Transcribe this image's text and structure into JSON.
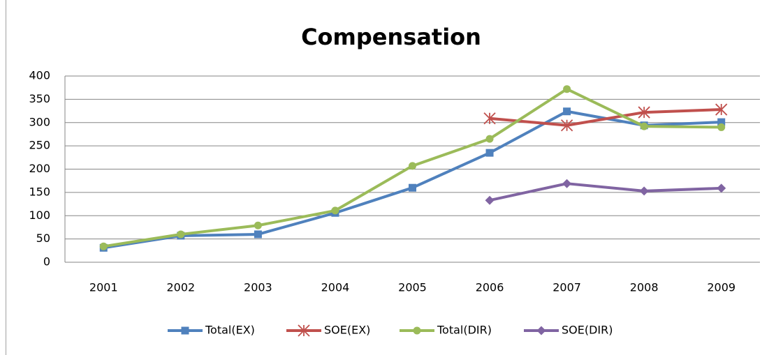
{
  "chart_data": {
    "type": "line",
    "title": "Compensation",
    "categories": [
      "2001",
      "2002",
      "2003",
      "2004",
      "2005",
      "2006",
      "2007",
      "2008",
      "2009"
    ],
    "series": [
      {
        "name": "Total(EX)",
        "color": "#4f81bd",
        "marker": "square",
        "values": [
          31,
          57,
          60,
          106,
          160,
          235,
          324,
          294,
          301
        ]
      },
      {
        "name": "SOE(EX)",
        "color": "#c0504d",
        "marker": "star",
        "values": [
          null,
          null,
          null,
          null,
          null,
          309,
          294,
          322,
          328
        ]
      },
      {
        "name": "Total(DIR)",
        "color": "#9bbb59",
        "marker": "circle",
        "values": [
          34,
          60,
          79,
          111,
          207,
          265,
          372,
          292,
          290
        ]
      },
      {
        "name": "SOE(DIR)",
        "color": "#8064a2",
        "marker": "diamond",
        "values": [
          null,
          null,
          null,
          null,
          null,
          133,
          169,
          153,
          159
        ]
      }
    ],
    "ylim": [
      0,
      400
    ],
    "yticks": [
      0,
      50,
      100,
      150,
      200,
      250,
      300,
      350,
      400
    ],
    "grid": true,
    "legend": "bottom"
  }
}
